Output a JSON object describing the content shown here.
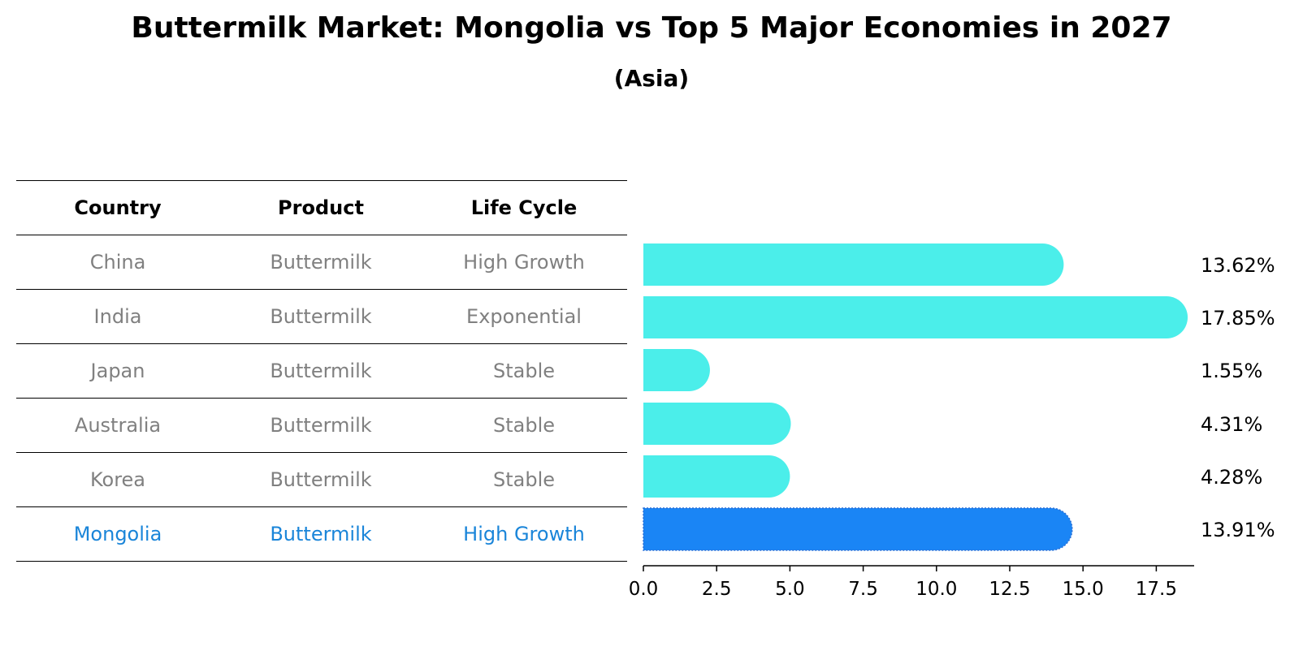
{
  "header": {
    "title": "Buttermilk Market: Mongolia vs Top 5 Major Economies in 2027",
    "subtitle": "(Asia)"
  },
  "table": {
    "columns": [
      "Country",
      "Product",
      "Life Cycle"
    ],
    "rows": [
      {
        "country": "China",
        "product": "Buttermilk",
        "life_cycle": "High Growth"
      },
      {
        "country": "India",
        "product": "Buttermilk",
        "life_cycle": "Exponential"
      },
      {
        "country": "Japan",
        "product": "Buttermilk",
        "life_cycle": "Stable"
      },
      {
        "country": "Australia",
        "product": "Buttermilk",
        "life_cycle": "Stable"
      },
      {
        "country": "Korea",
        "product": "Buttermilk",
        "life_cycle": "Stable"
      },
      {
        "country": "Mongolia",
        "product": "Buttermilk",
        "life_cycle": "High Growth"
      }
    ]
  },
  "chart_data": {
    "type": "bar",
    "orientation": "horizontal",
    "categories": [
      "China",
      "India",
      "Japan",
      "Australia",
      "Korea",
      "Mongolia"
    ],
    "values": [
      13.62,
      17.85,
      1.55,
      4.31,
      4.28,
      13.91
    ],
    "value_labels": [
      "13.62%",
      "17.85%",
      "1.55%",
      "4.31%",
      "4.28%",
      "13.91%"
    ],
    "highlight": "Mongolia",
    "xlim": [
      0,
      18.8
    ],
    "xticks": [
      0,
      2.5,
      5,
      7.5,
      10,
      12.5,
      15,
      17.5
    ],
    "xtick_labels": [
      "0.0",
      "2.5",
      "5.0",
      "7.5",
      "10.0",
      "12.5",
      "15.0",
      "17.5"
    ],
    "colors": {
      "bar": "#4beeea",
      "highlight": "#1a85f5",
      "highlight_text": "#1a85d9"
    }
  }
}
